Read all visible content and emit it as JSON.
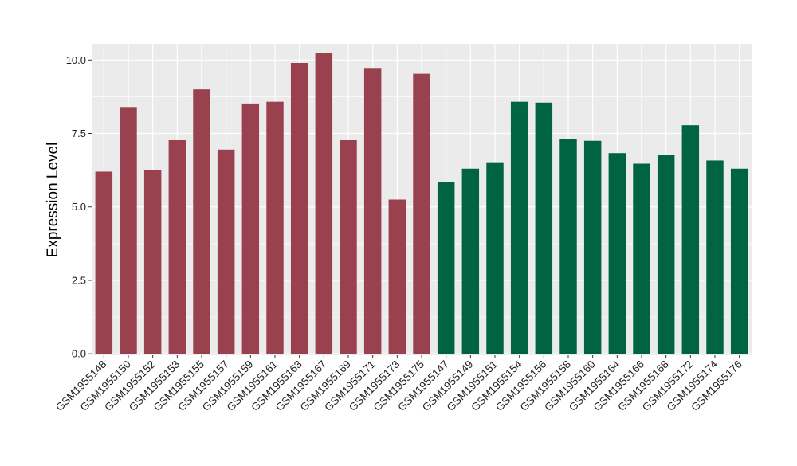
{
  "chart_data": {
    "type": "bar",
    "title": "",
    "xlabel": "",
    "ylabel": "Expression Level",
    "ylim": [
      -0.05,
      10.55
    ],
    "yticks": [
      0.0,
      2.5,
      5.0,
      7.5,
      10.0
    ],
    "ytick_labels": [
      "0.0",
      "2.5",
      "5.0",
      "7.5",
      "10.0"
    ],
    "grid": true,
    "legend": "none",
    "panel_background": "#ebebeb",
    "grid_color": "#ffffff",
    "categories": [
      "GSM1955148",
      "GSM1955150",
      "GSM1955152",
      "GSM1955153",
      "GSM1955155",
      "GSM1955157",
      "GSM1955159",
      "GSM1955161",
      "GSM1955163",
      "GSM1955167",
      "GSM1955169",
      "GSM1955171",
      "GSM1955173",
      "GSM1955175",
      "GSM1955147",
      "GSM1955149",
      "GSM1955151",
      "GSM1955154",
      "GSM1955156",
      "GSM1955158",
      "GSM1955160",
      "GSM1955164",
      "GSM1955166",
      "GSM1955168",
      "GSM1955172",
      "GSM1955174",
      "GSM1955176"
    ],
    "values": [
      6.2,
      8.4,
      6.25,
      7.27,
      9.0,
      6.95,
      8.52,
      8.58,
      9.9,
      10.25,
      7.27,
      9.73,
      5.25,
      9.53,
      5.85,
      6.3,
      6.52,
      8.58,
      8.55,
      7.3,
      7.25,
      6.83,
      6.47,
      6.78,
      7.78,
      6.58,
      6.3
    ],
    "bar_colors": [
      "#9a4150",
      "#9a4150",
      "#9a4150",
      "#9a4150",
      "#9a4150",
      "#9a4150",
      "#9a4150",
      "#9a4150",
      "#9a4150",
      "#9a4150",
      "#9a4150",
      "#9a4150",
      "#9a4150",
      "#9a4150",
      "#006443",
      "#006443",
      "#006443",
      "#006443",
      "#006443",
      "#006443",
      "#006443",
      "#006443",
      "#006443",
      "#006443",
      "#006443",
      "#006443",
      "#006443"
    ]
  }
}
